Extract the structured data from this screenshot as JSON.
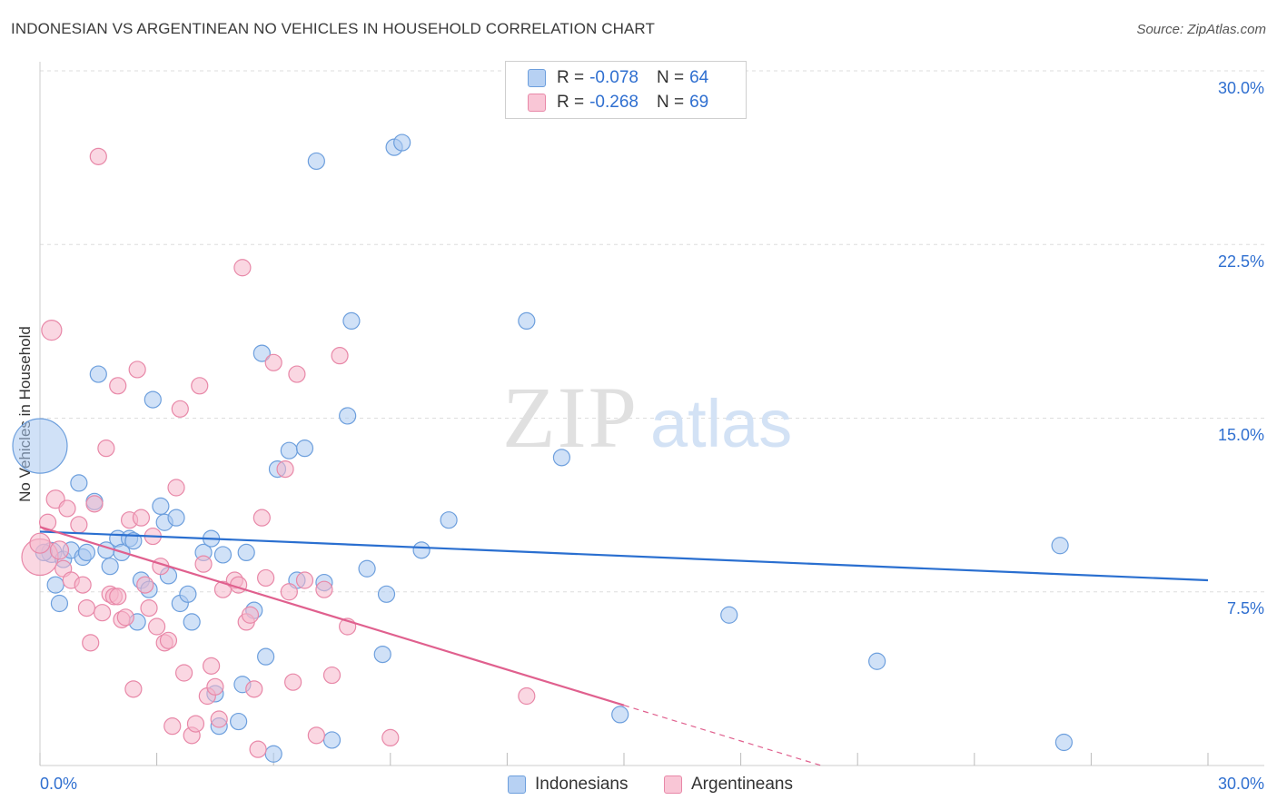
{
  "header": {
    "title": "INDONESIAN VS ARGENTINEAN NO VEHICLES IN HOUSEHOLD CORRELATION CHART",
    "source": "Source: ZipAtlas.com"
  },
  "watermark": {
    "zip": "ZIP",
    "atlas": "atlas"
  },
  "legend": {
    "rows": [
      {
        "r_label": "R =",
        "r_value": "-0.078",
        "n_label": "N =",
        "n_value": "64"
      },
      {
        "r_label": "R =",
        "r_value": "-0.268",
        "n_label": "N =",
        "n_value": "69"
      }
    ]
  },
  "bottom_legend": {
    "series1": "Indonesians",
    "series2": "Argentineans"
  },
  "axes": {
    "x_left_label": "0.0%",
    "x_right_label": "30.0%",
    "y_tick_labels": [
      "30.0%",
      "22.5%",
      "15.0%",
      "7.5%"
    ]
  },
  "colors": {
    "indonesian_fill": "#a9c8f0",
    "indonesian_stroke": "#6d9fdd",
    "indonesian_line": "#2a6fd0",
    "argentinean_fill": "#f6b6cb",
    "argentinean_stroke": "#e888a8",
    "argentinean_line": "#e0608e",
    "tick_text": "#2f6fd0",
    "grid": "#dddddd"
  },
  "chart_data": {
    "type": "scatter",
    "ylabel": "No Vehicles in Household",
    "xlim": [
      0,
      30
    ],
    "ylim": [
      0,
      30
    ],
    "y_ticks": [
      7.5,
      15.0,
      22.5,
      30.0
    ],
    "grid": true,
    "legend_position": "top-center",
    "series": [
      {
        "name": "Indonesians",
        "R": -0.078,
        "N": 64,
        "trend": {
          "x": [
            0,
            30
          ],
          "y": [
            10.1,
            8.0
          ],
          "style": "solid"
        },
        "points": [
          [
            0.0,
            13.8,
            30
          ],
          [
            0.3,
            9.2,
            11
          ],
          [
            0.4,
            7.8,
            9
          ],
          [
            0.5,
            7.0,
            9
          ],
          [
            0.6,
            8.9,
            9
          ],
          [
            0.8,
            9.3,
            9
          ],
          [
            1.0,
            12.2,
            9
          ],
          [
            1.1,
            9.0,
            9
          ],
          [
            1.2,
            9.2,
            9
          ],
          [
            1.4,
            11.4,
            9
          ],
          [
            1.5,
            16.9,
            9
          ],
          [
            1.7,
            9.3,
            9
          ],
          [
            1.8,
            8.6,
            9
          ],
          [
            2.0,
            9.8,
            9
          ],
          [
            2.1,
            9.2,
            9
          ],
          [
            2.3,
            9.8,
            9
          ],
          [
            2.4,
            9.7,
            9
          ],
          [
            2.5,
            6.2,
            9
          ],
          [
            2.6,
            8.0,
            9
          ],
          [
            2.8,
            7.6,
            9
          ],
          [
            2.9,
            15.8,
            9
          ],
          [
            3.1,
            11.2,
            9
          ],
          [
            3.2,
            10.5,
            9
          ],
          [
            3.3,
            8.2,
            9
          ],
          [
            3.5,
            10.7,
            9
          ],
          [
            3.6,
            7.0,
            9
          ],
          [
            3.8,
            7.4,
            9
          ],
          [
            3.9,
            6.2,
            9
          ],
          [
            4.2,
            9.2,
            9
          ],
          [
            4.4,
            9.8,
            9
          ],
          [
            4.5,
            3.1,
            9
          ],
          [
            4.6,
            1.7,
            9
          ],
          [
            4.7,
            9.1,
            9
          ],
          [
            5.1,
            1.9,
            9
          ],
          [
            5.2,
            3.5,
            9
          ],
          [
            5.3,
            9.2,
            9
          ],
          [
            5.5,
            6.7,
            9
          ],
          [
            5.7,
            17.8,
            9
          ],
          [
            5.8,
            4.7,
            9
          ],
          [
            6.0,
            0.5,
            9
          ],
          [
            6.1,
            12.8,
            9
          ],
          [
            6.4,
            13.6,
            9
          ],
          [
            6.6,
            8.0,
            9
          ],
          [
            6.8,
            13.7,
            9
          ],
          [
            7.1,
            26.1,
            9
          ],
          [
            7.3,
            7.9,
            9
          ],
          [
            7.5,
            1.1,
            9
          ],
          [
            7.9,
            15.1,
            9
          ],
          [
            8.0,
            19.2,
            9
          ],
          [
            8.4,
            8.5,
            9
          ],
          [
            8.8,
            4.8,
            9
          ],
          [
            8.9,
            7.4,
            9
          ],
          [
            9.1,
            26.7,
            9
          ],
          [
            9.3,
            26.9,
            9
          ],
          [
            9.8,
            9.3,
            9
          ],
          [
            10.5,
            10.6,
            9
          ],
          [
            12.5,
            19.2,
            9
          ],
          [
            13.4,
            13.3,
            9
          ],
          [
            14.9,
            2.2,
            9
          ],
          [
            17.7,
            6.5,
            9
          ],
          [
            21.5,
            4.5,
            9
          ],
          [
            26.2,
            9.5,
            9
          ],
          [
            26.3,
            1.0,
            9
          ],
          [
            0.1,
            9.2,
            9
          ]
        ]
      },
      {
        "name": "Argentineans",
        "R": -0.268,
        "N": 69,
        "trend": {
          "x": [
            0,
            15.0,
            30
          ],
          "y": [
            10.3,
            2.6,
            -5.1
          ],
          "style": "solid-then-dashed",
          "dash_from_x": 15.0
        },
        "points": [
          [
            0.0,
            9.0,
            20
          ],
          [
            0.0,
            9.6,
            11
          ],
          [
            0.2,
            10.5,
            9
          ],
          [
            0.3,
            18.8,
            11
          ],
          [
            0.4,
            11.5,
            10
          ],
          [
            0.5,
            9.3,
            10
          ],
          [
            0.6,
            8.5,
            9
          ],
          [
            0.7,
            11.1,
            9
          ],
          [
            0.8,
            8.0,
            9
          ],
          [
            1.0,
            10.4,
            9
          ],
          [
            1.1,
            7.8,
            9
          ],
          [
            1.2,
            6.8,
            9
          ],
          [
            1.3,
            5.3,
            9
          ],
          [
            1.4,
            11.3,
            9
          ],
          [
            1.5,
            26.3,
            9
          ],
          [
            1.6,
            6.6,
            9
          ],
          [
            1.7,
            13.7,
            9
          ],
          [
            1.8,
            7.4,
            9
          ],
          [
            1.9,
            7.3,
            9
          ],
          [
            2.0,
            7.3,
            9
          ],
          [
            2.0,
            16.4,
            9
          ],
          [
            2.1,
            6.3,
            9
          ],
          [
            2.2,
            6.4,
            9
          ],
          [
            2.3,
            10.6,
            9
          ],
          [
            2.4,
            3.3,
            9
          ],
          [
            2.5,
            17.1,
            9
          ],
          [
            2.6,
            10.7,
            9
          ],
          [
            2.7,
            7.8,
            9
          ],
          [
            2.8,
            6.8,
            9
          ],
          [
            2.9,
            9.9,
            9
          ],
          [
            3.0,
            6.0,
            9
          ],
          [
            3.1,
            8.6,
            9
          ],
          [
            3.2,
            5.3,
            9
          ],
          [
            3.3,
            5.4,
            9
          ],
          [
            3.4,
            1.7,
            9
          ],
          [
            3.5,
            12.0,
            9
          ],
          [
            3.6,
            15.4,
            9
          ],
          [
            3.7,
            4.0,
            9
          ],
          [
            3.9,
            1.3,
            9
          ],
          [
            4.0,
            1.8,
            9
          ],
          [
            4.1,
            16.4,
            9
          ],
          [
            4.2,
            8.7,
            9
          ],
          [
            4.3,
            3.0,
            9
          ],
          [
            4.4,
            4.3,
            9
          ],
          [
            4.5,
            3.4,
            9
          ],
          [
            4.6,
            2.0,
            9
          ],
          [
            4.7,
            7.6,
            9
          ],
          [
            5.0,
            8.0,
            9
          ],
          [
            5.1,
            7.8,
            9
          ],
          [
            5.2,
            21.5,
            9
          ],
          [
            5.3,
            6.2,
            9
          ],
          [
            5.4,
            6.5,
            9
          ],
          [
            5.5,
            3.3,
            9
          ],
          [
            5.6,
            0.7,
            9
          ],
          [
            5.7,
            10.7,
            9
          ],
          [
            5.8,
            8.1,
            9
          ],
          [
            6.0,
            17.4,
            9
          ],
          [
            6.3,
            12.8,
            9
          ],
          [
            6.4,
            7.5,
            9
          ],
          [
            6.5,
            3.6,
            9
          ],
          [
            6.6,
            16.9,
            9
          ],
          [
            6.8,
            8.0,
            9
          ],
          [
            7.1,
            1.3,
            9
          ],
          [
            7.3,
            7.6,
            9
          ],
          [
            7.5,
            3.9,
            9
          ],
          [
            7.7,
            17.7,
            9
          ],
          [
            7.9,
            6.0,
            9
          ],
          [
            9.0,
            1.2,
            9
          ],
          [
            12.5,
            3.0,
            9
          ]
        ]
      }
    ]
  }
}
